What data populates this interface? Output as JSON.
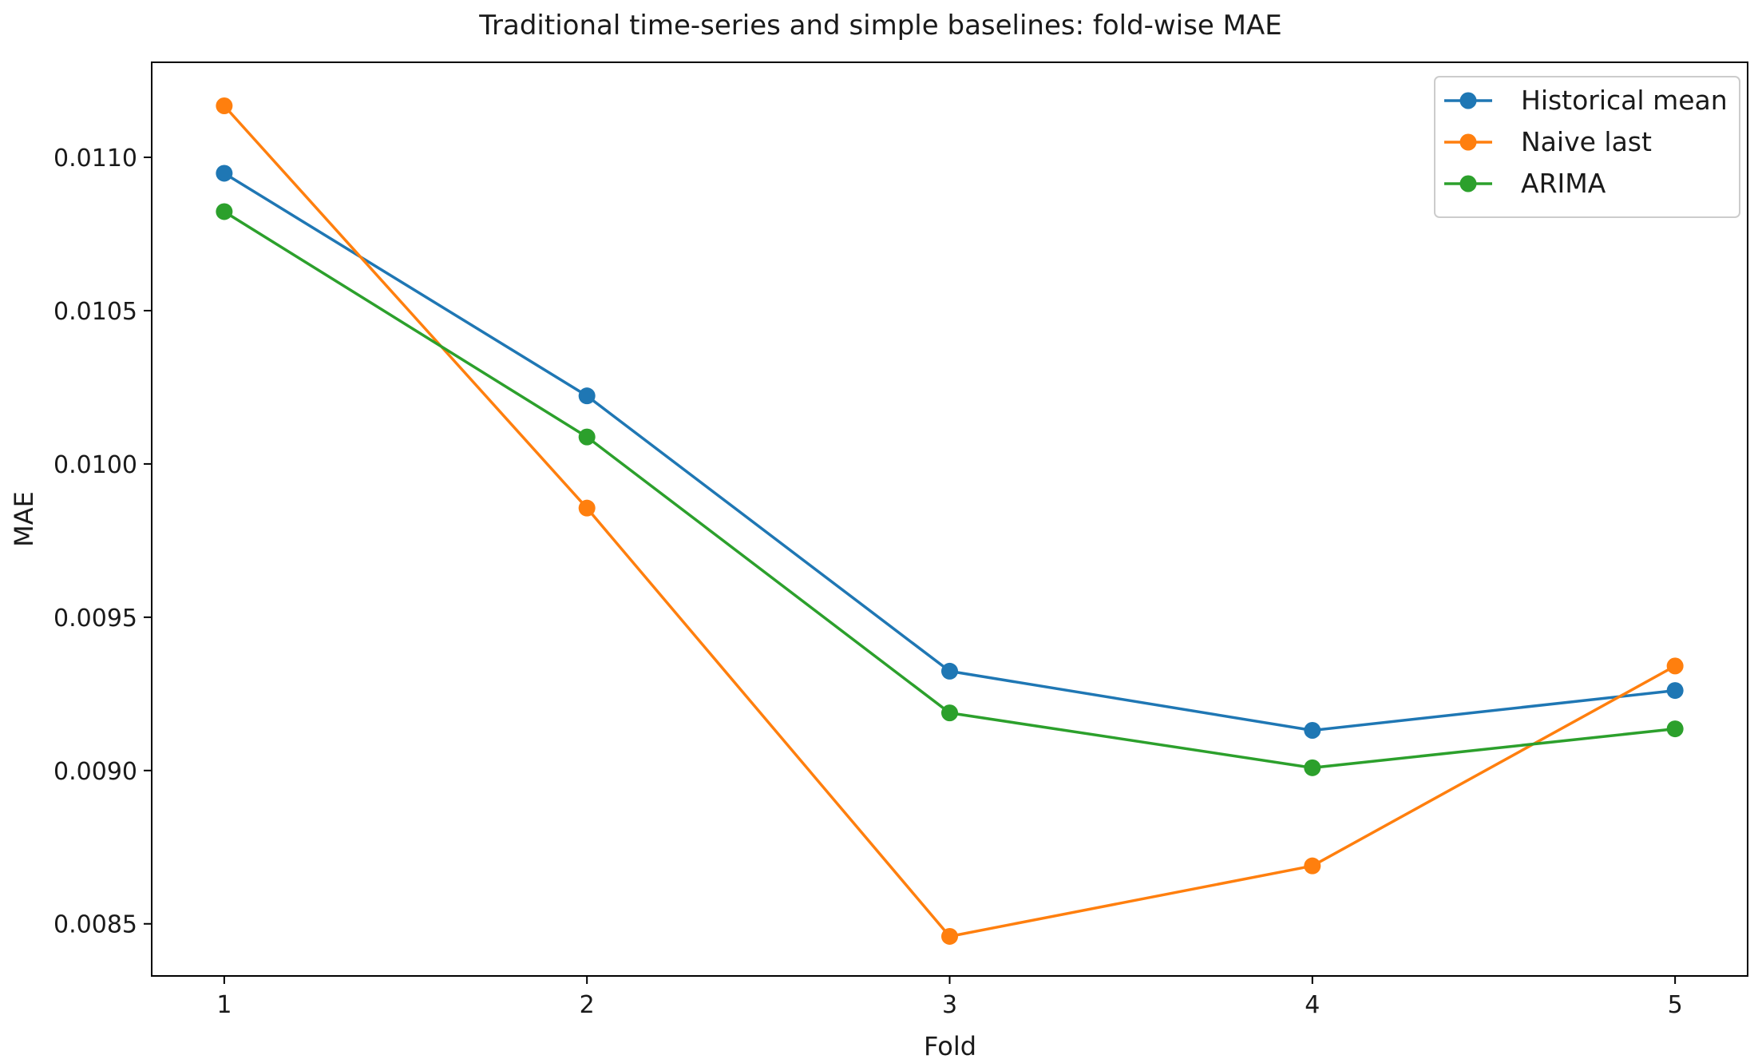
{
  "chart_data": {
    "type": "line",
    "title": "Traditional time-series and simple baselines: fold-wise MAE",
    "xlabel": "Fold",
    "ylabel": "MAE",
    "x": [
      1,
      2,
      3,
      4,
      5
    ],
    "x_tick_labels": [
      "1",
      "2",
      "3",
      "4",
      "5"
    ],
    "y_ticks": [
      0.0085,
      0.009,
      0.0095,
      0.01,
      0.0105,
      0.011
    ],
    "y_tick_labels": [
      "0.0085",
      "0.0090",
      "0.0095",
      "0.0100",
      "0.0105",
      "0.0110"
    ],
    "xlim": [
      0.8,
      5.2
    ],
    "ylim": [
      0.00833,
      0.01131
    ],
    "grid": false,
    "legend_position": "top-right",
    "series": [
      {
        "name": "Historical mean",
        "color": "#1f77b4",
        "values": [
          0.010948,
          0.010222,
          0.009324,
          0.009131,
          0.009261
        ]
      },
      {
        "name": "Naive last",
        "color": "#ff7f0e",
        "values": [
          0.011168,
          0.009856,
          0.008459,
          0.008689,
          0.009341
        ]
      },
      {
        "name": "ARIMA",
        "color": "#2ca02c",
        "values": [
          0.010823,
          0.010088,
          0.009188,
          0.009009,
          0.009136
        ]
      }
    ]
  }
}
